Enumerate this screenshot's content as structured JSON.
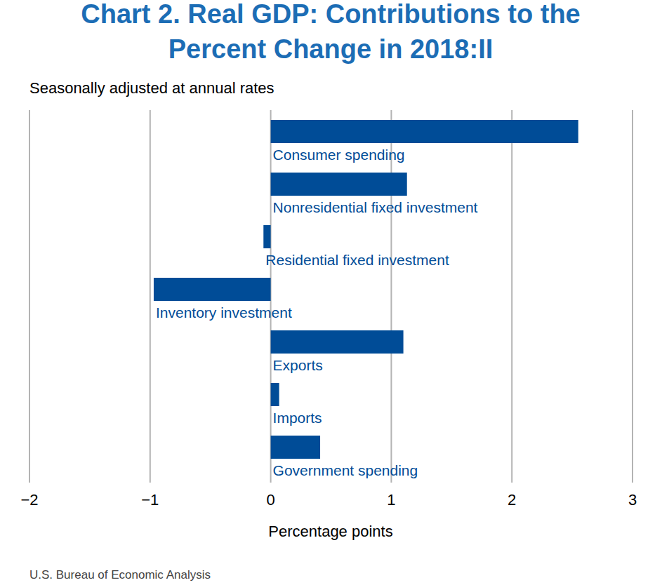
{
  "chart_data": {
    "type": "bar",
    "orientation": "horizontal",
    "title": "Chart 2. Real GDP: Contributions to the Percent Change in 2018:II",
    "subtitle": "Seasonally adjusted at annual rates",
    "categories": [
      "Consumer spending",
      "Nonresidential fixed investment",
      "Residential fixed investment",
      "Inventory investment",
      "Exports",
      "Imports",
      "Government spending"
    ],
    "values": [
      2.55,
      1.13,
      -0.06,
      -0.97,
      1.1,
      0.07,
      0.41
    ],
    "color": "#004c97",
    "xlim": [
      -2,
      3
    ],
    "xticks": [
      {
        "value": -2,
        "label": "−2"
      },
      {
        "value": -1,
        "label": "−1"
      },
      0,
      1,
      2,
      3
    ],
    "x_label": "Percentage points",
    "source": "U.S. Bureau of Economic Analysis",
    "grid": true
  }
}
